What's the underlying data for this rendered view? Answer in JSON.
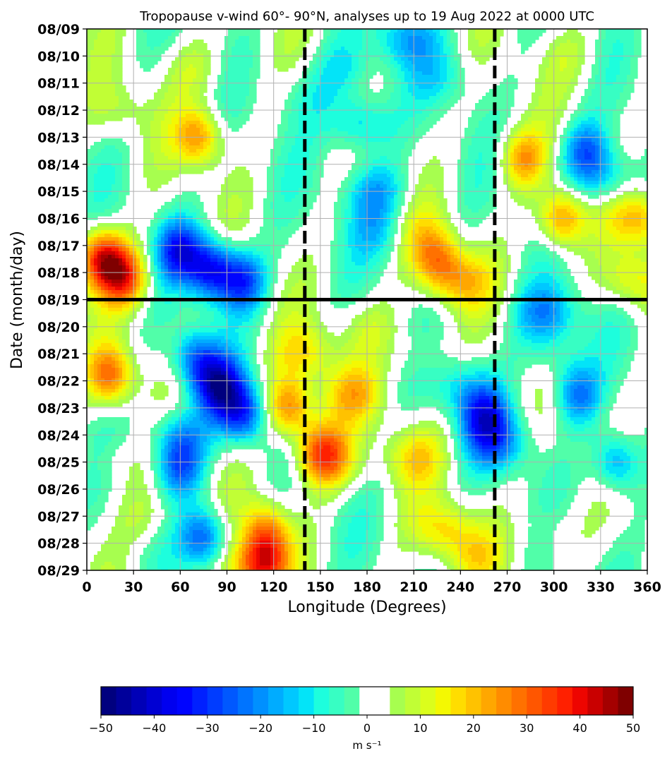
{
  "chart_data": {
    "type": "heatmap",
    "title": "Tropopause v-wind 60°- 90°N, analyses up to 19 Aug 2022 at 0000 UTC",
    "xlabel": "Longitude (Degrees)",
    "ylabel": "Date (month/day)",
    "xlim": [
      0,
      360
    ],
    "x_ticks": [
      "0",
      "30",
      "60",
      "90",
      "120",
      "150",
      "180",
      "210",
      "240",
      "270",
      "300",
      "330",
      "360"
    ],
    "y_ticks": [
      "08/09",
      "08/10",
      "08/11",
      "08/12",
      "08/13",
      "08/14",
      "08/15",
      "08/16",
      "08/17",
      "08/18",
      "08/19",
      "08/20",
      "08/21",
      "08/22",
      "08/23",
      "08/24",
      "08/25",
      "08/26",
      "08/27",
      "08/28",
      "08/29"
    ],
    "grid": true,
    "reference_lines": {
      "horizontal_solid_date": "08/19",
      "vertical_dashed_longitudes": [
        140,
        262
      ]
    },
    "colorbar": {
      "label": "m s⁻¹",
      "range": [
        -50,
        50
      ],
      "ticks": [
        "−50",
        "−40",
        "−30",
        "−20",
        "−10",
        "0",
        "10",
        "20",
        "30",
        "40",
        "50"
      ],
      "colors": [
        "#00007f",
        "#00009b",
        "#0000b7",
        "#0000d3",
        "#0000ef",
        "#0004ff",
        "#0020ff",
        "#003cff",
        "#0058ff",
        "#0074ff",
        "#0090ff",
        "#00acff",
        "#00c8ff",
        "#03e4f8",
        "#1dfedd",
        "#37fec3",
        "#51fea9",
        "#ffffff",
        "#ffffff",
        "#a7fe4f",
        "#c1fe35",
        "#dbfe1c",
        "#f4f802",
        "#ffdd00",
        "#ffc200",
        "#ffa700",
        "#ff8c00",
        "#ff7100",
        "#ff5600",
        "#ff3b00",
        "#ff2000",
        "#ee0500",
        "#c90000",
        "#a40000",
        "#7f0000"
      ]
    },
    "features": [
      {
        "lon": 10,
        "day": 8.5,
        "value": 38
      },
      {
        "lon": 25,
        "day": 9.2,
        "value": 30
      },
      {
        "lon": 60,
        "day": 8.2,
        "value": -30
      },
      {
        "lon": 80,
        "day": 8.9,
        "value": -34
      },
      {
        "lon": 100,
        "day": 9.3,
        "value": -28
      },
      {
        "lon": 72,
        "day": 4.0,
        "value": 24
      },
      {
        "lon": 85,
        "day": 13.2,
        "value": -36
      },
      {
        "lon": 100,
        "day": 14.2,
        "value": -30
      },
      {
        "lon": 70,
        "day": 12.2,
        "value": -24
      },
      {
        "lon": 15,
        "day": 12.8,
        "value": 28
      },
      {
        "lon": 60,
        "day": 16.2,
        "value": -22
      },
      {
        "lon": 75,
        "day": 18.8,
        "value": -26
      },
      {
        "lon": 60,
        "day": 15.0,
        "value": -18
      },
      {
        "lon": 115,
        "day": 18.5,
        "value": 22
      },
      {
        "lon": 130,
        "day": 14.0,
        "value": 28
      },
      {
        "lon": 150,
        "day": 15.5,
        "value": 22
      },
      {
        "lon": 140,
        "day": 12.0,
        "value": 14
      },
      {
        "lon": 170,
        "day": 13.5,
        "value": 16
      },
      {
        "lon": 155,
        "day": 16.0,
        "value": 18
      },
      {
        "lon": 175,
        "day": 3.5,
        "value": -18
      },
      {
        "lon": 185,
        "day": 6.0,
        "value": -16
      },
      {
        "lon": 190,
        "day": 7.5,
        "value": -12
      },
      {
        "lon": 165,
        "day": 1.5,
        "value": -10
      },
      {
        "lon": 205,
        "day": 0.3,
        "value": -16
      },
      {
        "lon": 230,
        "day": 1.8,
        "value": -8
      },
      {
        "lon": 225,
        "day": 8.5,
        "value": 22
      },
      {
        "lon": 240,
        "day": 9.3,
        "value": 18
      },
      {
        "lon": 210,
        "day": 7.5,
        "value": 10
      },
      {
        "lon": 255,
        "day": 14.3,
        "value": -26
      },
      {
        "lon": 265,
        "day": 15.3,
        "value": -18
      },
      {
        "lon": 240,
        "day": 13.2,
        "value": -12
      },
      {
        "lon": 295,
        "day": 10.5,
        "value": -20
      },
      {
        "lon": 315,
        "day": 13.5,
        "value": -22
      },
      {
        "lon": 340,
        "day": 16.0,
        "value": -22
      },
      {
        "lon": 320,
        "day": 4.5,
        "value": -22
      },
      {
        "lon": 335,
        "day": 5.5,
        "value": -16
      },
      {
        "lon": 280,
        "day": 4.8,
        "value": 22
      },
      {
        "lon": 305,
        "day": 7.0,
        "value": 28
      },
      {
        "lon": 355,
        "day": 7.0,
        "value": 20
      },
      {
        "lon": 350,
        "day": 9.3,
        "value": 16
      },
      {
        "lon": 210,
        "day": 15.8,
        "value": 14
      },
      {
        "lon": 230,
        "day": 18.5,
        "value": 16
      },
      {
        "lon": 250,
        "day": 19.5,
        "value": 10
      },
      {
        "lon": 115,
        "day": 19.6,
        "value": 22
      },
      {
        "lon": 105,
        "day": 20.0,
        "value": 20
      },
      {
        "lon": 20,
        "day": 3.0,
        "value": 8
      },
      {
        "lon": 300,
        "day": 18.5,
        "value": 6
      },
      {
        "lon": 300,
        "day": 12.0,
        "value": -8
      },
      {
        "lon": 180,
        "day": 11.0,
        "value": 8
      },
      {
        "lon": 215,
        "day": 12.0,
        "value": 6
      },
      {
        "lon": 40,
        "day": 18.0,
        "value": 8
      },
      {
        "lon": 140,
        "day": 2.5,
        "value": -6
      },
      {
        "lon": 70,
        "day": 1.5,
        "value": 8
      },
      {
        "lon": 310,
        "day": 1.0,
        "value": 6
      },
      {
        "lon": 20,
        "day": 16.0,
        "value": 6
      }
    ]
  }
}
